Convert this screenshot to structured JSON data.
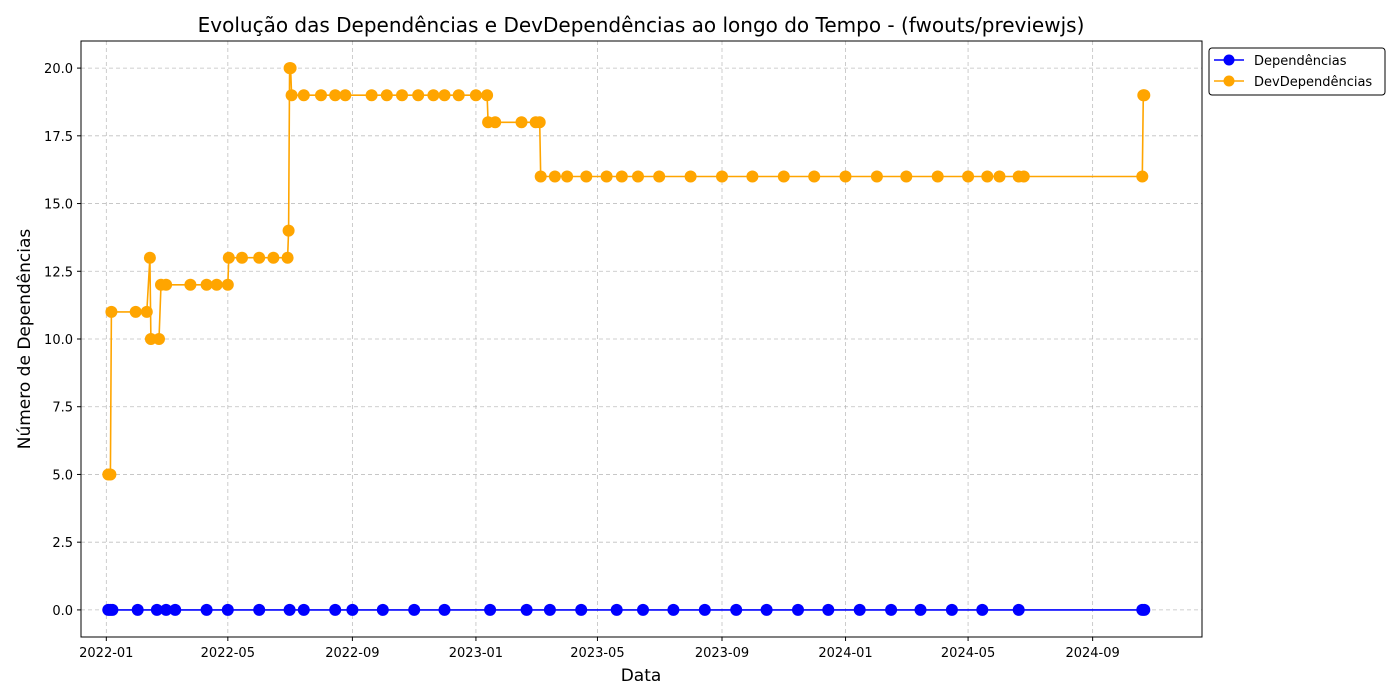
{
  "chart_data": {
    "type": "line",
    "title": "Evolução das Dependências e DevDependências ao longo do Tempo - (fwouts/previewjs)",
    "xlabel": "Data",
    "ylabel": "Número de Dependências",
    "ylim": [
      -1,
      21
    ],
    "xlim": [
      "2021-12-07",
      "2024-12-18"
    ],
    "grid": true,
    "legend_position": "upper-right-outside",
    "x_ticks": [
      "2022-01",
      "2022-05",
      "2022-09",
      "2023-01",
      "2023-05",
      "2023-09",
      "2024-01",
      "2024-05",
      "2024-09"
    ],
    "y_ticks": [
      0.0,
      2.5,
      5.0,
      7.5,
      10.0,
      12.5,
      15.0,
      17.5,
      20.0
    ],
    "series": [
      {
        "name": "Dependências",
        "color": "#0000ff",
        "points": [
          [
            "2022-01-03",
            0
          ],
          [
            "2022-01-05",
            0
          ],
          [
            "2022-01-07",
            0
          ],
          [
            "2022-02-01",
            0
          ],
          [
            "2022-02-20",
            0
          ],
          [
            "2022-03-01",
            0
          ],
          [
            "2022-03-10",
            0
          ],
          [
            "2022-04-10",
            0
          ],
          [
            "2022-05-01",
            0
          ],
          [
            "2022-06-01",
            0
          ],
          [
            "2022-07-01",
            0
          ],
          [
            "2022-07-15",
            0
          ],
          [
            "2022-08-15",
            0
          ],
          [
            "2022-09-01",
            0
          ],
          [
            "2022-10-01",
            0
          ],
          [
            "2022-11-01",
            0
          ],
          [
            "2022-12-01",
            0
          ],
          [
            "2023-01-15",
            0
          ],
          [
            "2023-02-20",
            0
          ],
          [
            "2023-03-15",
            0
          ],
          [
            "2023-04-15",
            0
          ],
          [
            "2023-05-20",
            0
          ],
          [
            "2023-06-15",
            0
          ],
          [
            "2023-07-15",
            0
          ],
          [
            "2023-08-15",
            0
          ],
          [
            "2023-09-15",
            0
          ],
          [
            "2023-10-15",
            0
          ],
          [
            "2023-11-15",
            0
          ],
          [
            "2023-12-15",
            0
          ],
          [
            "2024-01-15",
            0
          ],
          [
            "2024-02-15",
            0
          ],
          [
            "2024-03-15",
            0
          ],
          [
            "2024-04-15",
            0
          ],
          [
            "2024-05-15",
            0
          ],
          [
            "2024-06-20",
            0
          ],
          [
            "2024-10-20",
            0
          ],
          [
            "2024-10-22",
            0
          ]
        ]
      },
      {
        "name": "DevDependências",
        "color": "#ffa500",
        "points": [
          [
            "2022-01-03",
            5
          ],
          [
            "2022-01-05",
            5
          ],
          [
            "2022-01-06",
            11
          ],
          [
            "2022-01-30",
            11
          ],
          [
            "2022-02-10",
            11
          ],
          [
            "2022-02-13",
            13
          ],
          [
            "2022-02-14",
            10
          ],
          [
            "2022-02-22",
            10
          ],
          [
            "2022-02-24",
            12
          ],
          [
            "2022-03-01",
            12
          ],
          [
            "2022-03-25",
            12
          ],
          [
            "2022-04-10",
            12
          ],
          [
            "2022-04-20",
            12
          ],
          [
            "2022-05-01",
            12
          ],
          [
            "2022-05-02",
            13
          ],
          [
            "2022-05-15",
            13
          ],
          [
            "2022-06-01",
            13
          ],
          [
            "2022-06-15",
            13
          ],
          [
            "2022-06-29",
            13
          ],
          [
            "2022-06-30",
            14
          ],
          [
            "2022-07-01",
            20
          ],
          [
            "2022-07-02",
            20
          ],
          [
            "2022-07-03",
            19
          ],
          [
            "2022-07-15",
            19
          ],
          [
            "2022-08-01",
            19
          ],
          [
            "2022-08-15",
            19
          ],
          [
            "2022-08-25",
            19
          ],
          [
            "2022-09-20",
            19
          ],
          [
            "2022-10-05",
            19
          ],
          [
            "2022-10-20",
            19
          ],
          [
            "2022-11-05",
            19
          ],
          [
            "2022-11-20",
            19
          ],
          [
            "2022-12-01",
            19
          ],
          [
            "2022-12-15",
            19
          ],
          [
            "2023-01-01",
            19
          ],
          [
            "2023-01-12",
            19
          ],
          [
            "2023-01-13",
            18
          ],
          [
            "2023-01-20",
            18
          ],
          [
            "2023-02-15",
            18
          ],
          [
            "2023-03-01",
            18
          ],
          [
            "2023-03-05",
            18
          ],
          [
            "2023-03-06",
            16
          ],
          [
            "2023-03-20",
            16
          ],
          [
            "2023-04-01",
            16
          ],
          [
            "2023-04-20",
            16
          ],
          [
            "2023-05-10",
            16
          ],
          [
            "2023-05-25",
            16
          ],
          [
            "2023-06-10",
            16
          ],
          [
            "2023-07-01",
            16
          ],
          [
            "2023-08-01",
            16
          ],
          [
            "2023-09-01",
            16
          ],
          [
            "2023-10-01",
            16
          ],
          [
            "2023-11-01",
            16
          ],
          [
            "2023-12-01",
            16
          ],
          [
            "2024-01-01",
            16
          ],
          [
            "2024-02-01",
            16
          ],
          [
            "2024-03-01",
            16
          ],
          [
            "2024-04-01",
            16
          ],
          [
            "2024-05-01",
            16
          ],
          [
            "2024-05-20",
            16
          ],
          [
            "2024-06-01",
            16
          ],
          [
            "2024-06-20",
            16
          ],
          [
            "2024-06-25",
            16
          ],
          [
            "2024-10-20",
            16
          ],
          [
            "2024-10-21",
            19
          ],
          [
            "2024-10-22",
            19
          ]
        ]
      }
    ]
  }
}
